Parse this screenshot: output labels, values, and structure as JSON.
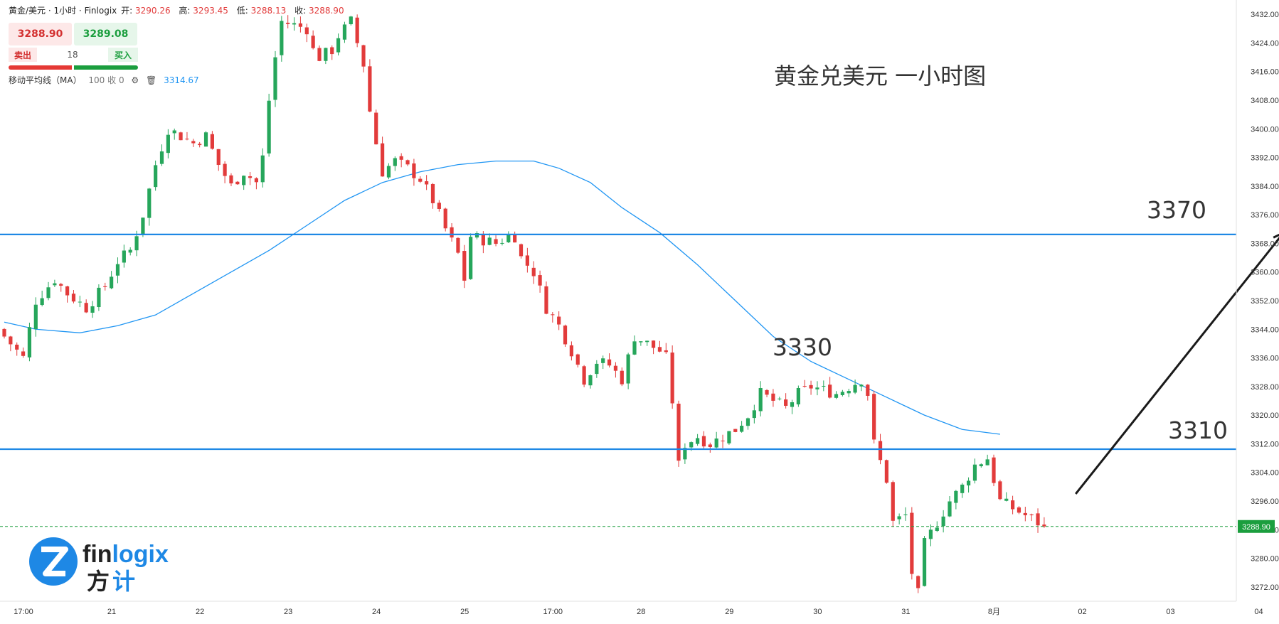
{
  "header": {
    "symbol": "黄金/美元 · 1小时 · Finlogix",
    "open_label": "开:",
    "open": "3290.26",
    "high_label": "高:",
    "high": "3293.45",
    "low_label": "低:",
    "low": "3288.13",
    "close_label": "收:",
    "close": "3288.90"
  },
  "trade": {
    "bid": "3288.90",
    "ask": "3289.08",
    "sell_label": "卖出",
    "buy_label": "买入",
    "quantity": "18"
  },
  "indicator": {
    "label": "移动平均线（MA）",
    "params": "100 收 0",
    "value": "3314.67"
  },
  "annotations": {
    "title": "黄金兑美元 一小时图",
    "level_3370": "3370",
    "level_3330": "3330",
    "level_3310": "3310"
  },
  "logo": {
    "brand": "finlogix",
    "chinese": "方计"
  },
  "colors": {
    "up": "#26a65b",
    "down": "#e23b3b",
    "ma": "#2196f3",
    "level_line": "#1e88e5",
    "last_price": "#1b9e3e"
  },
  "chart_data": {
    "type": "candlestick",
    "y_axis": {
      "min": 3268,
      "max": 3436,
      "ticks": [
        3272,
        3280,
        3288,
        3296,
        3304,
        3312,
        3320,
        3328,
        3336,
        3344,
        3352,
        3360,
        3368,
        3376,
        3384,
        3392,
        3400,
        3408,
        3416,
        3424,
        3432
      ],
      "tick_labels": [
        "3272.00",
        "3280.00",
        "3288.00",
        "3296.00",
        "3304.00",
        "3312.00",
        "3320.00",
        "3328.00",
        "3336.00",
        "3344.00",
        "3352.00",
        "3360.00",
        "3368.00",
        "3376.00",
        "3384.00",
        "3392.00",
        "3400.00",
        "3408.00",
        "3416.00",
        "3424.00",
        "3432.00"
      ],
      "last_price_label": "3288.90"
    },
    "x_axis": {
      "labels": [
        "17:00",
        "21",
        "22",
        "23",
        "24",
        "25",
        "17:00",
        "28",
        "29",
        "30",
        "31",
        "8月",
        "02",
        "03",
        "04"
      ],
      "label_bars": [
        0,
        14,
        28,
        42,
        56,
        70,
        84,
        98,
        112,
        126,
        140,
        154,
        168,
        182,
        196
      ]
    },
    "close_path": [
      [
        0,
        3342
      ],
      [
        3,
        3336
      ],
      [
        5,
        3352
      ],
      [
        8,
        3358
      ],
      [
        10,
        3354
      ],
      [
        13,
        3350
      ],
      [
        16,
        3356
      ],
      [
        18,
        3363
      ],
      [
        20,
        3366
      ],
      [
        22,
        3376
      ],
      [
        24,
        3390
      ],
      [
        26,
        3400
      ],
      [
        28,
        3398
      ],
      [
        30,
        3396
      ],
      [
        32,
        3398
      ],
      [
        34,
        3390
      ],
      [
        36,
        3384
      ],
      [
        38,
        3388
      ],
      [
        40,
        3385
      ],
      [
        41,
        3392
      ],
      [
        42,
        3408
      ],
      [
        43,
        3420
      ],
      [
        44,
        3430
      ],
      [
        46,
        3429
      ],
      [
        48,
        3428
      ],
      [
        49,
        3422
      ],
      [
        50,
        3420
      ],
      [
        52,
        3422
      ],
      [
        53,
        3426
      ],
      [
        55,
        3430
      ],
      [
        57,
        3418
      ],
      [
        58,
        3405
      ],
      [
        59,
        3396
      ],
      [
        60,
        3388
      ],
      [
        62,
        3391
      ],
      [
        64,
        3389
      ],
      [
        66,
        3386
      ],
      [
        68,
        3380
      ],
      [
        70,
        3372
      ],
      [
        72,
        3365
      ],
      [
        73,
        3358
      ],
      [
        74,
        3370
      ],
      [
        76,
        3369
      ],
      [
        78,
        3368
      ],
      [
        80,
        3370
      ],
      [
        81,
        3370
      ],
      [
        82,
        3364
      ],
      [
        84,
        3360
      ],
      [
        86,
        3350
      ],
      [
        88,
        3345
      ],
      [
        90,
        3338
      ],
      [
        92,
        3330
      ],
      [
        94,
        3335
      ],
      [
        96,
        3334
      ],
      [
        98,
        3330
      ],
      [
        100,
        3342
      ],
      [
        102,
        3340
      ],
      [
        104,
        3338
      ],
      [
        105,
        3336
      ],
      [
        106,
        3324
      ],
      [
        107,
        3306
      ],
      [
        108,
        3312
      ],
      [
        110,
        3314
      ],
      [
        112,
        3312
      ],
      [
        114,
        3314
      ],
      [
        116,
        3316
      ],
      [
        118,
        3320
      ],
      [
        120,
        3326
      ],
      [
        122,
        3324
      ],
      [
        124,
        3322
      ],
      [
        126,
        3326
      ],
      [
        128,
        3328
      ],
      [
        130,
        3327
      ],
      [
        132,
        3326
      ],
      [
        134,
        3328
      ],
      [
        136,
        3330
      ],
      [
        137,
        3326
      ],
      [
        138,
        3312
      ],
      [
        140,
        3302
      ],
      [
        141,
        3290
      ],
      [
        143,
        3292
      ],
      [
        144,
        3276
      ],
      [
        145,
        3270
      ],
      [
        146,
        3284
      ],
      [
        148,
        3290
      ],
      [
        150,
        3296
      ],
      [
        152,
        3300
      ],
      [
        154,
        3306
      ],
      [
        156,
        3308
      ],
      [
        158,
        3296
      ],
      [
        160,
        3294
      ],
      [
        162,
        3292
      ],
      [
        164,
        3290
      ],
      [
        165,
        3288.9
      ]
    ],
    "moving_average": {
      "name": "MA 100",
      "points": [
        [
          0,
          3346
        ],
        [
          5,
          3344
        ],
        [
          12,
          3343
        ],
        [
          18,
          3345
        ],
        [
          24,
          3348
        ],
        [
          30,
          3354
        ],
        [
          36,
          3360
        ],
        [
          42,
          3366
        ],
        [
          48,
          3373
        ],
        [
          54,
          3380
        ],
        [
          60,
          3385
        ],
        [
          66,
          3388
        ],
        [
          72,
          3390
        ],
        [
          78,
          3391
        ],
        [
          84,
          3391
        ],
        [
          88,
          3389
        ],
        [
          93,
          3385
        ],
        [
          98,
          3378
        ],
        [
          104,
          3371
        ],
        [
          110,
          3362
        ],
        [
          116,
          3352
        ],
        [
          122,
          3342
        ],
        [
          128,
          3335
        ],
        [
          134,
          3330
        ],
        [
          140,
          3325
        ],
        [
          146,
          3320
        ],
        [
          152,
          3316
        ],
        [
          158,
          3314.67
        ]
      ]
    },
    "horizontal_levels": [
      3370.5,
      3310.5
    ],
    "last_price": 3288.9,
    "projection_arrow": {
      "from": [
        170,
        3298
      ],
      "to": [
        203,
        3371
      ]
    }
  }
}
